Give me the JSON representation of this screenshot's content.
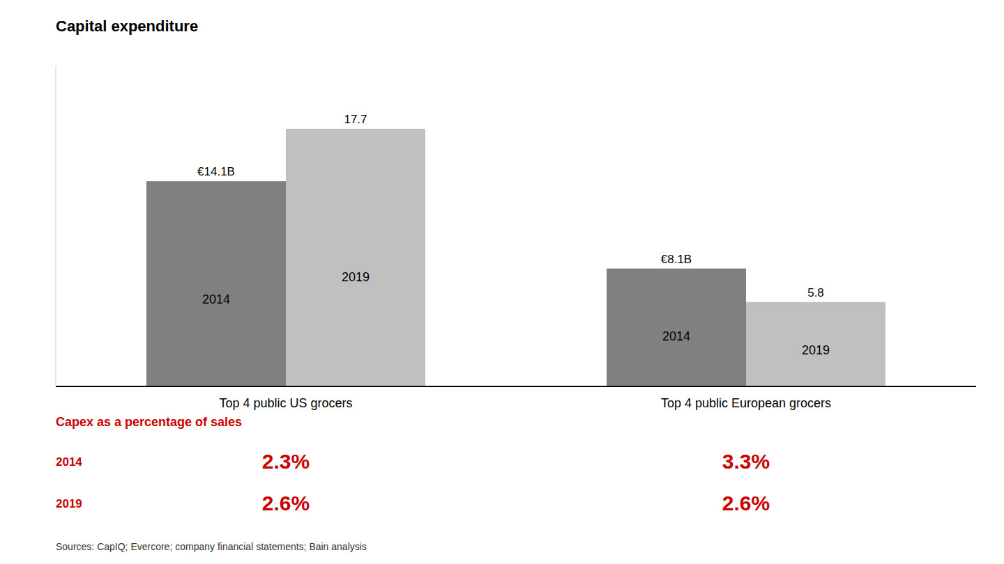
{
  "chart_data": {
    "type": "bar",
    "title": "Capital expenditure",
    "categories": [
      "Top 4 public US grocers",
      "Top 4 public European grocers"
    ],
    "series": [
      {
        "name": "2014",
        "color": "#808080",
        "values": [
          14.1,
          8.1
        ],
        "value_labels": [
          "€14.1B",
          "€8.1B"
        ]
      },
      {
        "name": "2019",
        "color": "#c0c0c0",
        "values": [
          17.7,
          5.8
        ],
        "value_labels": [
          "17.7",
          "5.8"
        ]
      }
    ],
    "ylim": [
      0,
      22
    ],
    "grid": false,
    "data_labels": true,
    "tick_labels": "x",
    "table": {
      "title": "Capex as a percentage of sales",
      "color": "#cc0000",
      "rows": [
        {
          "label": "2014",
          "values": [
            2.3,
            3.3
          ],
          "value_labels": [
            "2.3%",
            "3.3%"
          ]
        },
        {
          "label": "2019",
          "values": [
            2.6,
            2.6
          ],
          "value_labels": [
            "2.6%",
            "2.6%"
          ]
        }
      ]
    },
    "source": "Sources: CapIQ; Evercore; company financial statements; Bain analysis"
  }
}
